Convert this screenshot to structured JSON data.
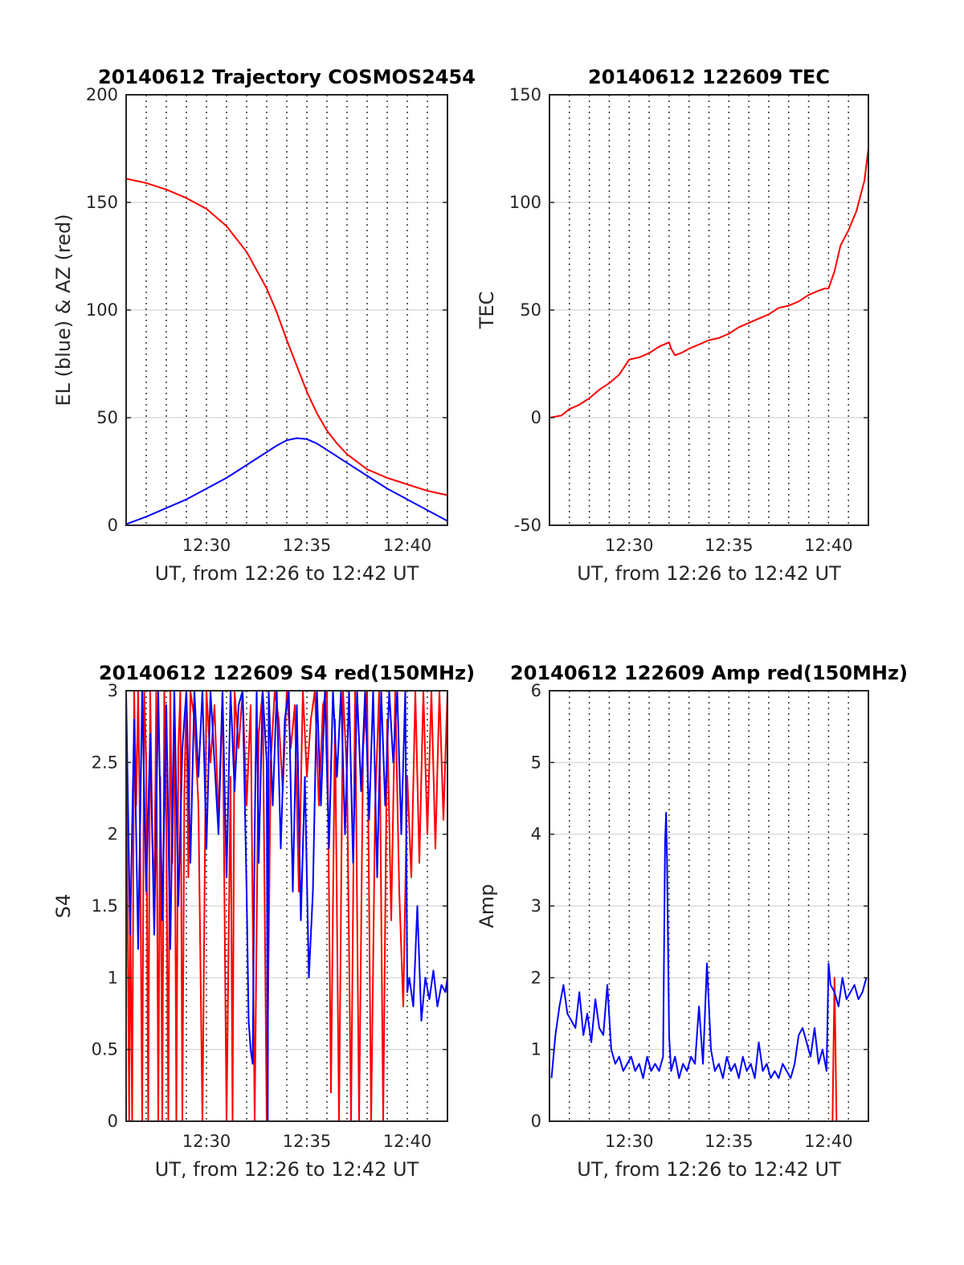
{
  "chart_data": [
    {
      "type": "line",
      "title": "20140612 Trajectory COSMOS2454",
      "xlabel": "UT, from 12:26 to 12:42 UT",
      "ylabel": "EL (blue) & AZ (red)",
      "xlim": [
        0,
        16
      ],
      "ylim": [
        0,
        200
      ],
      "yticks": [
        0,
        50,
        100,
        150,
        200
      ],
      "xticks": [
        {
          "value": 4,
          "label": "12:30"
        },
        {
          "value": 9,
          "label": "12:35"
        },
        {
          "value": 14,
          "label": "12:40"
        }
      ],
      "series": [
        {
          "color": "#ff0000",
          "x": [
            0,
            1,
            2,
            3,
            4,
            5,
            6,
            7,
            7.5,
            8,
            8.5,
            9,
            9.5,
            10,
            10.5,
            11,
            12,
            13,
            14,
            15,
            16
          ],
          "y": [
            161,
            159,
            156,
            152,
            147,
            139,
            127,
            110,
            99,
            86,
            74,
            62,
            52,
            44,
            38,
            33,
            26,
            22,
            19,
            16,
            14
          ]
        },
        {
          "color": "#0000ff",
          "x": [
            0,
            1,
            2,
            3,
            4,
            5,
            6,
            7,
            7.5,
            8,
            8.5,
            9,
            9.5,
            10,
            11,
            12,
            13,
            14,
            15,
            16
          ],
          "y": [
            0.5,
            4,
            8,
            12,
            17,
            22,
            28,
            34,
            37,
            39.5,
            40.5,
            40,
            38,
            35,
            29,
            23,
            17,
            12,
            7,
            2
          ]
        }
      ]
    },
    {
      "type": "line",
      "title": "20140612 122609 TEC",
      "xlabel": "UT, from 12:26 to 12:42 UT",
      "ylabel": "TEC",
      "xlim": [
        0,
        16
      ],
      "ylim": [
        -50,
        150
      ],
      "yticks": [
        -50,
        0,
        50,
        100,
        150
      ],
      "xticks": [
        {
          "value": 4,
          "label": "12:30"
        },
        {
          "value": 9,
          "label": "12:35"
        },
        {
          "value": 14,
          "label": "12:40"
        }
      ],
      "series": [
        {
          "color": "#ff0000",
          "x": [
            0,
            0.3,
            0.6,
            1,
            1.5,
            2,
            2.5,
            3,
            3.5,
            4,
            4.5,
            5,
            5.5,
            6,
            6.1,
            6.3,
            6.6,
            7,
            7.5,
            8,
            8.5,
            9,
            9.5,
            10,
            10.5,
            11,
            11.5,
            12,
            12.5,
            13,
            13.5,
            13.8,
            14,
            14.3,
            14.6,
            15,
            15.4,
            15.8,
            16
          ],
          "y": [
            0,
            0.5,
            1,
            4,
            6,
            9,
            13,
            16,
            20,
            27,
            28,
            30,
            33,
            35,
            32,
            29,
            30,
            32,
            34,
            36,
            37,
            39,
            42,
            44,
            46,
            48,
            51,
            52,
            54,
            57,
            59,
            60,
            60,
            68,
            80,
            87,
            96,
            110,
            125
          ]
        }
      ]
    },
    {
      "type": "line",
      "title": "20140612 122609 S4 red(150MHz)",
      "xlabel": "UT, from 12:26 to 12:42 UT",
      "ylabel": "S4",
      "xlim": [
        0,
        16
      ],
      "ylim": [
        0,
        3
      ],
      "yticks": [
        0,
        0.5,
        1,
        1.5,
        2,
        2.5,
        3
      ],
      "xticks": [
        {
          "value": 4,
          "label": "12:30"
        },
        {
          "value": 9,
          "label": "12:35"
        },
        {
          "value": 14,
          "label": "12:40"
        }
      ],
      "series": [
        {
          "color": "#ff0000",
          "x": [
            0,
            0.15,
            0.2,
            0.3,
            0.4,
            0.5,
            0.6,
            0.7,
            0.8,
            0.9,
            1.0,
            1.1,
            1.2,
            1.3,
            1.4,
            1.5,
            1.6,
            1.7,
            1.8,
            1.9,
            2.0,
            2.1,
            2.2,
            2.3,
            2.4,
            2.5,
            2.6,
            2.7,
            2.8,
            2.9,
            3.0,
            3.1,
            3.2,
            3.4,
            3.6,
            3.8,
            4.0,
            4.2,
            4.4,
            4.6,
            4.8,
            5.0,
            5.2,
            5.3,
            5.4,
            5.6,
            5.8,
            6.0,
            6.2,
            6.4,
            6.6,
            6.8,
            7.0,
            7.2,
            7.4,
            7.6,
            7.8,
            8.0,
            8.2,
            8.4,
            8.6,
            8.8,
            9.0,
            9.2,
            9.4,
            9.6,
            9.8,
            10.0,
            10.2,
            10.4,
            10.6,
            10.8,
            11.0,
            11.2,
            11.4,
            11.6,
            11.8,
            12.0,
            12.2,
            12.4,
            12.6,
            12.8,
            13.0,
            13.2,
            13.4,
            13.6,
            13.8,
            14.0,
            14.2,
            14.4,
            14.6,
            14.8,
            15.0,
            15.2,
            15.4,
            15.6,
            15.8,
            16.0
          ],
          "y": [
            2.8,
            0,
            1.6,
            0,
            3,
            2.2,
            3,
            1.9,
            0,
            3,
            2.5,
            0,
            3,
            2.0,
            1.5,
            3,
            0,
            2.4,
            0,
            3,
            2.1,
            0,
            3,
            1.8,
            3,
            0,
            2.6,
            3,
            0,
            2.3,
            3,
            1.7,
            3,
            2.8,
            2.2,
            0,
            3,
            2.5,
            2.9,
            2.1,
            3,
            0,
            2.4,
            0,
            3,
            2.6,
            3,
            2.2,
            2.9,
            0,
            2.7,
            3,
            0,
            2.5,
            3,
            2.8,
            2.3,
            3,
            2.6,
            2.9,
            1.6,
            3,
            2.4,
            2.8,
            3,
            2.2,
            2.9,
            3,
            0.2,
            2.8,
            0,
            3,
            2.4,
            0,
            3,
            0,
            2.6,
            3,
            0,
            2.2,
            3,
            0,
            2.8,
            1.4,
            3,
            1.6,
            0.8,
            2.4,
            1.7,
            3,
            1.8,
            3,
            2.0,
            3,
            1.9,
            3,
            2.1,
            3
          ]
        },
        {
          "color": "#0000ff",
          "x": [
            0,
            0.2,
            0.4,
            0.6,
            0.8,
            1.0,
            1.2,
            1.4,
            1.6,
            1.8,
            2.0,
            2.2,
            2.4,
            2.6,
            2.8,
            3.0,
            3.2,
            3.4,
            3.6,
            3.8,
            4.0,
            4.2,
            4.4,
            4.6,
            4.8,
            5.0,
            5.2,
            5.4,
            5.6,
            5.8,
            6.0,
            6.1,
            6.2,
            6.3,
            6.4,
            6.5,
            6.6,
            6.8,
            7.0,
            7.05,
            7.1,
            7.3,
            7.5,
            7.7,
            7.9,
            8.1,
            8.3,
            8.5,
            8.7,
            8.9,
            9.1,
            9.3,
            9.5,
            9.7,
            9.9,
            10.1,
            10.3,
            10.5,
            10.7,
            10.9,
            11.1,
            11.3,
            11.5,
            11.7,
            11.9,
            12.1,
            12.3,
            12.5,
            12.7,
            12.9,
            13.1,
            13.3,
            13.5,
            13.7,
            13.9,
            14.0,
            14.1,
            14.3,
            14.5,
            14.7,
            14.9,
            15.1,
            15.3,
            15.5,
            15.7,
            15.9,
            16.0
          ],
          "y": [
            3,
            1.3,
            2.8,
            1.2,
            3,
            1.6,
            2.7,
            1.3,
            3,
            1.4,
            2.9,
            1.2,
            3,
            1.5,
            2.6,
            3,
            1.8,
            3,
            2.4,
            3,
            1.9,
            3,
            2.5,
            2.0,
            3,
            1.7,
            3,
            2.3,
            2.9,
            3,
            1.6,
            0.7,
            0.5,
            0.4,
            2.0,
            3,
            1.8,
            3,
            2.5,
            0,
            3,
            2.2,
            3,
            1.9,
            2.8,
            3,
            1.6,
            2.9,
            1.4,
            2.4,
            1.0,
            1.6,
            3,
            2.2,
            3,
            1.9,
            3,
            2.4,
            3,
            2.0,
            3,
            1.8,
            3,
            2.3,
            3,
            2.1,
            3,
            1.7,
            3,
            2.2,
            3,
            2.5,
            3,
            2.0,
            3,
            0.9,
            1.0,
            0.8,
            1.5,
            0.7,
            1.0,
            0.85,
            1.05,
            0.8,
            0.95,
            0.9,
            1.0
          ]
        }
      ]
    },
    {
      "type": "line",
      "title": "20140612 122609 Amp red(150MHz)",
      "xlabel": "UT, from 12:26 to 12:42 UT",
      "ylabel": "Amp",
      "xlim": [
        0,
        16
      ],
      "ylim": [
        0,
        6
      ],
      "yticks": [
        0,
        1,
        2,
        3,
        4,
        5,
        6
      ],
      "xticks": [
        {
          "value": 4,
          "label": "12:30"
        },
        {
          "value": 9,
          "label": "12:35"
        },
        {
          "value": 14,
          "label": "12:40"
        }
      ],
      "series": [
        {
          "color": "#ff0000",
          "x": [
            0,
            14.2,
            14.3,
            14.4,
            16
          ],
          "y": [
            0,
            0,
            2.0,
            0,
            0
          ]
        },
        {
          "color": "#0000ff",
          "x": [
            0.1,
            0.3,
            0.5,
            0.7,
            0.9,
            1.1,
            1.3,
            1.5,
            1.7,
            1.9,
            2.1,
            2.3,
            2.5,
            2.7,
            2.9,
            3.1,
            3.3,
            3.5,
            3.7,
            3.9,
            4.1,
            4.3,
            4.5,
            4.7,
            4.9,
            5.1,
            5.3,
            5.5,
            5.7,
            5.8,
            5.85,
            5.9,
            6.0,
            6.1,
            6.2,
            6.3,
            6.5,
            6.7,
            6.9,
            7.1,
            7.3,
            7.5,
            7.7,
            7.9,
            8.1,
            8.3,
            8.5,
            8.7,
            8.9,
            9.1,
            9.3,
            9.5,
            9.7,
            9.9,
            10.1,
            10.3,
            10.5,
            10.7,
            10.9,
            11.1,
            11.3,
            11.5,
            11.7,
            11.9,
            12.1,
            12.3,
            12.5,
            12.7,
            12.9,
            13.1,
            13.3,
            13.5,
            13.7,
            13.9,
            14.0,
            14.1,
            14.3,
            14.5,
            14.7,
            14.9,
            15.1,
            15.3,
            15.5,
            15.7,
            15.9
          ],
          "y": [
            0.6,
            1.2,
            1.6,
            1.9,
            1.5,
            1.4,
            1.3,
            1.8,
            1.2,
            1.5,
            1.1,
            1.7,
            1.3,
            1.2,
            1.9,
            1.0,
            0.8,
            0.9,
            0.7,
            0.8,
            0.9,
            0.7,
            0.8,
            0.6,
            0.9,
            0.7,
            0.8,
            0.7,
            0.9,
            3.9,
            4.3,
            3.6,
            1.2,
            0.7,
            0.8,
            0.9,
            0.6,
            0.8,
            0.7,
            0.9,
            0.8,
            1.6,
            0.8,
            2.2,
            1.0,
            0.7,
            0.8,
            0.6,
            0.9,
            0.7,
            0.8,
            0.6,
            0.9,
            0.7,
            0.8,
            0.6,
            1.1,
            0.7,
            0.8,
            0.6,
            0.7,
            0.6,
            0.8,
            0.7,
            0.6,
            0.8,
            1.2,
            1.3,
            1.1,
            0.9,
            1.3,
            0.8,
            1.0,
            0.7,
            2.2,
            1.9,
            1.8,
            1.6,
            2.0,
            1.7,
            1.8,
            1.9,
            1.7,
            1.8,
            2.0
          ]
        }
      ]
    }
  ]
}
